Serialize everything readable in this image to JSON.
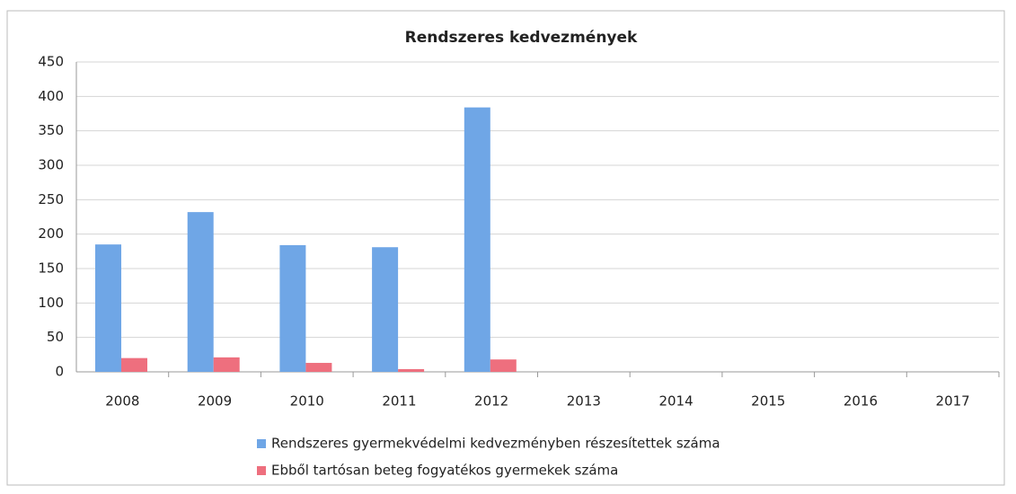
{
  "chart_data": {
    "type": "bar",
    "title": "Rendszeres kedvezmények",
    "categories": [
      "2008",
      "2009",
      "2010",
      "2011",
      "2012",
      "2013",
      "2014",
      "2015",
      "2016",
      "2017"
    ],
    "series": [
      {
        "name": "Rendszeres gyermekvédelmi kedvezményben részesítettek száma",
        "color": "#6fa6e6",
        "values": [
          185,
          232,
          184,
          181,
          384,
          null,
          null,
          null,
          null,
          null
        ]
      },
      {
        "name": "Ebből tartósan beteg fogyatékos gyermekek száma",
        "color": "#ee6f7e",
        "values": [
          20,
          21,
          13,
          4,
          18,
          null,
          null,
          null,
          null,
          null
        ]
      }
    ],
    "ylim": [
      0,
      450
    ],
    "yticks": [
      0,
      50,
      100,
      150,
      200,
      250,
      300,
      350,
      400,
      450
    ],
    "grid": true,
    "legend": "bottom"
  }
}
